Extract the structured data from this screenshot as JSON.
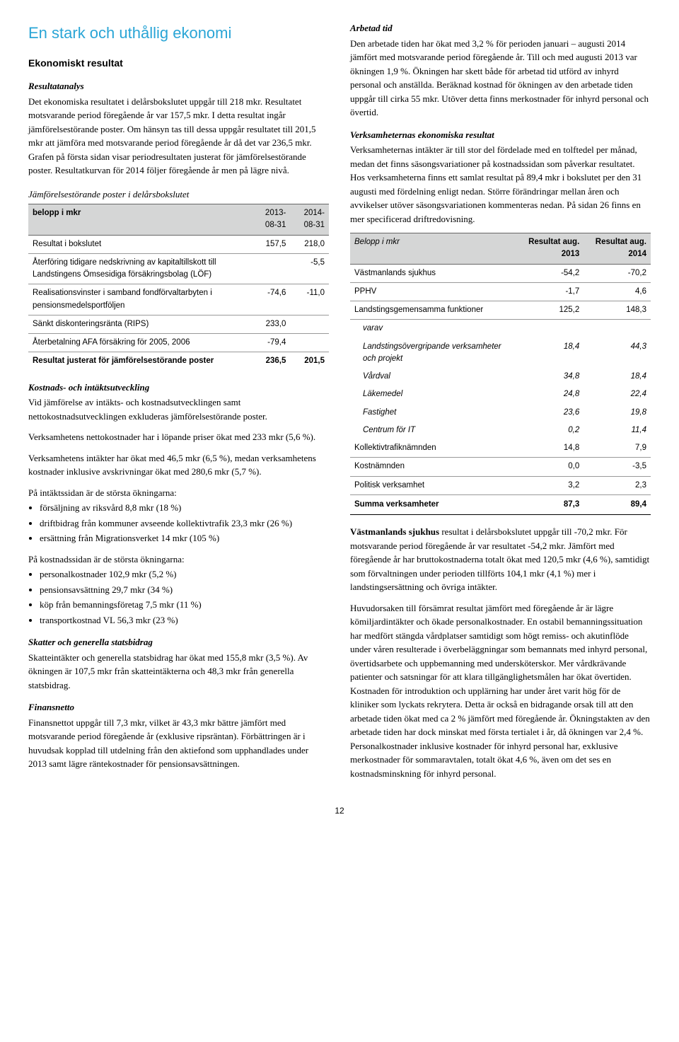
{
  "page": {
    "number": "12"
  },
  "left": {
    "title": "En stark och uthållig ekonomi",
    "h2": "Ekonomiskt resultat",
    "sub1": "Resultatanalys",
    "p1": "Det ekonomiska resultatet i delårsbokslutet uppgår till 218 mkr. Resultatet motsvarande period föregående år var 157,5 mkr. I detta resultat ingår jämförelsestörande poster. Om hänsyn tas till dessa uppgår resultatet till 201,5 mkr att jämföra med motsvarande period föregående år då det var 236,5 mkr. Grafen på första sidan visar periodresultaten justerat för jämförelsestörande poster. Resultatkurvan för 2014 följer föregående år men på lägre nivå.",
    "table1": {
      "title": "Jämförelsestörande poster i delårsbokslutet",
      "col0": "belopp i mkr",
      "col1": "2013-08-31",
      "col2": "2014-08-31",
      "rows": [
        {
          "label": "Resultat i bokslutet",
          "c1": "157,5",
          "c2": "218,0"
        },
        {
          "label": "Återföring tidigare nedskrivning av kapitaltillskott till Landstingens Ömsesidiga försäkringsbolag (LÖF)",
          "c1": "",
          "c2": "-5,5"
        },
        {
          "label": "Realisationsvinster i samband fondförvaltarbyten i pensionsmedelsportföljen",
          "c1": "-74,6",
          "c2": "-11,0"
        },
        {
          "label": "Sänkt diskonteringsränta (RIPS)",
          "c1": "233,0",
          "c2": ""
        },
        {
          "label": "Återbetalning AFA försäkring för 2005, 2006",
          "c1": "-79,4",
          "c2": ""
        }
      ],
      "sumlabel": "Resultat justerat för jämförelsestörande poster",
      "sum1": "236,5",
      "sum2": "201,5"
    },
    "sub2": "Kostnads- och intäktsutveckling",
    "p2": "Vid jämförelse av intäkts- och kostnadsutvecklingen samt nettokostnadsutvecklingen exkluderas jämförelsestörande poster.",
    "p3": "Verksamhetens nettokostnader har i löpande priser ökat med 233 mkr (5,6 %).",
    "p4": "Verksamhetens intäkter har ökat med 46,5 mkr (6,5 %), medan verksamhetens kostnader inklusive avskrivningar ökat med 280,6 mkr (5,7 %).",
    "p5": "På intäktssidan är de största ökningarna:",
    "list1": [
      "försäljning av riksvård 8,8 mkr (18 %)",
      "driftbidrag från kommuner avseende kollektivtrafik 23,3 mkr (26 %)",
      "ersättning från Migrationsverket 14 mkr (105 %)"
    ],
    "p6": "På kostnadssidan är de största ökningarna:",
    "list2": [
      "personalkostnader 102,9 mkr (5,2 %)",
      "pensionsavsättning 29,7 mkr (34 %)",
      "köp från bemanningsföretag 7,5 mkr (11 %)",
      "transportkostnad VL 56,3 mkr (23 %)"
    ],
    "sub3": "Skatter och generella statsbidrag",
    "p7": "Skatteintäkter och generella statsbidrag har ökat med 155,8 mkr (3,5 %). Av ökningen är 107,5 mkr från skatteintäkterna och 48,3 mkr från generella statsbidrag.",
    "sub4": "Finansnetto",
    "p8": "Finansnettot uppgår till 7,3 mkr, vilket är 43,3 mkr bättre jämfört med motsvarande period föregående år (exklusive ripsräntan). Förbättringen är i huvudsak kopplad till utdelning från den aktiefond som upphandlades under 2013 samt lägre räntekostnader för pensionsavsättningen."
  },
  "right": {
    "sub1": "Arbetad tid",
    "p1": "Den arbetade tiden har ökat med 3,2 % för perioden januari – augusti 2014 jämfört med motsvarande period föregående år. Till och med augusti 2013 var ökningen 1,9 %. Ökningen har skett både för arbetad tid utförd av inhyrd personal och anställda. Beräknad kostnad för ökningen av den arbetade tiden uppgår till cirka 55 mkr. Utöver detta finns merkostnader för inhyrd personal och övertid.",
    "sub2": "Verksamheternas ekonomiska resultat",
    "p2": "Verksamheternas intäkter är till stor del fördelade med en tolftedel per månad, medan det finns säsongsvariationer på kostnadssidan som påverkar resultatet. Hos verksamheterna finns ett samlat resultat på 89,4 mkr i bokslutet per den 31 augusti med fördelning enligt nedan. Större förändringar mellan åren och avvikelser utöver säsongsvariationen kommenteras nedan. På sidan 26 finns en mer specificerad driftredovisning.",
    "table2": {
      "col0": "Belopp i mkr",
      "col1": "Resultat aug. 2013",
      "col2": "Resultat aug. 2014",
      "rows": [
        {
          "label": "Västmanlands sjukhus",
          "c1": "-54,2",
          "c2": "-70,2",
          "indent": false
        },
        {
          "label": "PPHV",
          "c1": "-1,7",
          "c2": "4,6",
          "indent": false
        },
        {
          "label": "Landstingsgemensamma funktioner",
          "c1": "125,2",
          "c2": "148,3",
          "indent": false
        },
        {
          "label": "varav",
          "c1": "",
          "c2": "",
          "indent": true
        },
        {
          "label": "Landstingsövergripande verksamheter och projekt",
          "c1": "18,4",
          "c2": "44,3",
          "indent": true
        },
        {
          "label": "Vårdval",
          "c1": "34,8",
          "c2": "18,4",
          "indent": true
        },
        {
          "label": "Läkemedel",
          "c1": "24,8",
          "c2": "22,4",
          "indent": true
        },
        {
          "label": "Fastighet",
          "c1": "23,6",
          "c2": "19,8",
          "indent": true
        },
        {
          "label": "Centrum för IT",
          "c1": "0,2",
          "c2": "11,4",
          "indent": true
        },
        {
          "label": "Kollektivtrafiknämnden",
          "c1": "14,8",
          "c2": "7,9",
          "indent": false
        },
        {
          "label": "Kostnämnden",
          "c1": "0,0",
          "c2": "-3,5",
          "indent": false
        },
        {
          "label": "Politisk verksamhet",
          "c1": "3,2",
          "c2": "2,3",
          "indent": false
        }
      ],
      "sumlabel": "Summa verksamheter",
      "sum1": "87,3",
      "sum2": "89,4"
    },
    "p3": "Västmanlands sjukhus resultat i delårsbokslutet uppgår till -70,2 mkr. För motsvarande period föregående år var resultatet -54,2 mkr. Jämfört med föregående år har bruttokostnaderna totalt ökat med 120,5 mkr (4,6 %), samtidigt som förvaltningen under perioden tillförts 104,1 mkr (4,1 %) mer i landstingsersättning och övriga intäkter.",
    "p3lead": "Västmanlands sjukhus",
    "p4": "Huvudorsaken till försämrat resultat jämfört med föregående år är lägre kömiljardintäkter och ökade personalkostnader. En ostabil bemanningssituation har medfört stängda vårdplatser samtidigt som högt remiss- och akutinflöde under våren resulterade i överbeläggningar som bemannats med inhyrd personal, övertidsarbete och uppbemanning med undersköterskor. Mer vårdkrävande patienter och satsningar för att klara tillgänglighetsmålen har ökat övertiden. Kostnaden för introduktion och upplärning har under året varit hög för de kliniker som lyckats rekrytera. Detta är också en bidragande orsak till att den arbetade tiden ökat med ca 2 % jämfört med föregående år. Ökningstakten av den arbetade tiden har dock minskat med första tertialet i år, då ökningen var 2,4 %. Personalkostnader inklusive kostnader för inhyrd personal har, exklusive merkostnader för sommaravtalen, totalt ökat 4,6 %, även om det ses en kostnadsminskning för inhyrd personal."
  }
}
